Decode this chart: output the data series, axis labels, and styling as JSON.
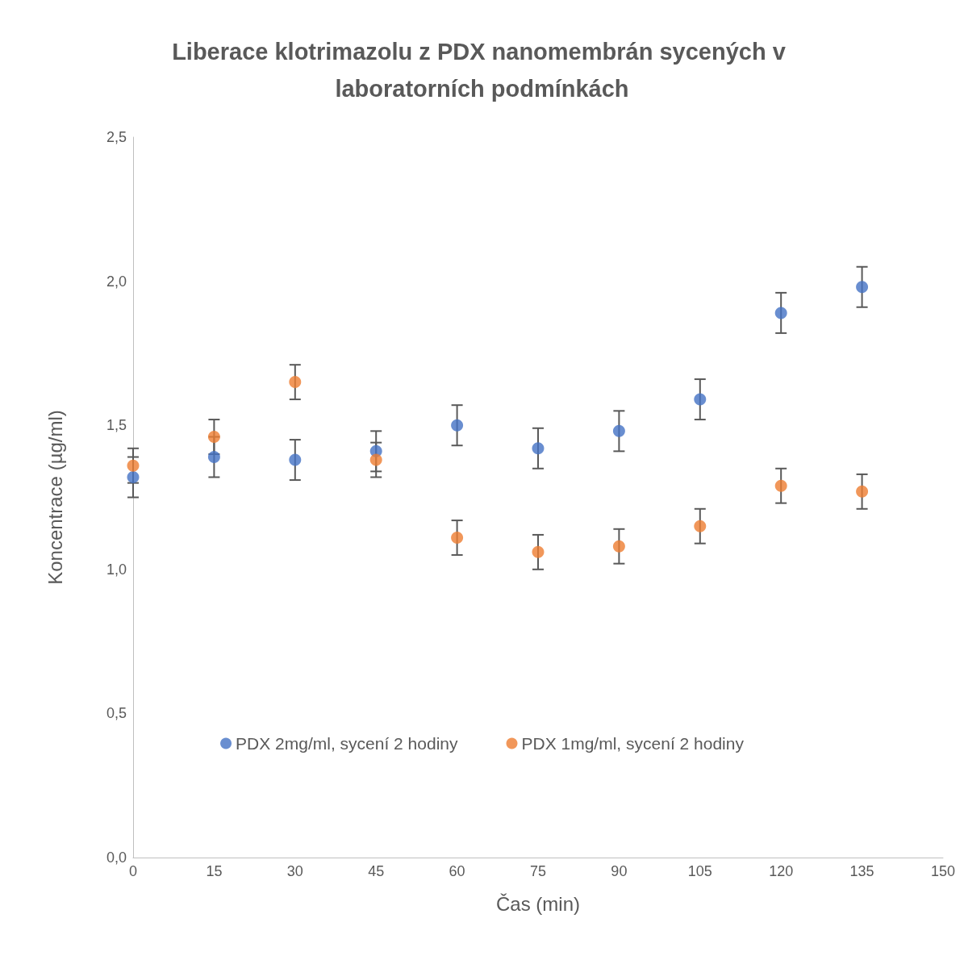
{
  "chart_data": {
    "type": "scatter",
    "title": "Liberace klotrimazolu z PDX nanomembrán sycených v laboratorních podmínkách",
    "xlabel": "Čas (min)",
    "ylabel": "Koncentrace (µg/ml)",
    "x": [
      0,
      15,
      30,
      45,
      60,
      75,
      90,
      105,
      120,
      135
    ],
    "series": [
      {
        "name": "PDX 2mg/ml, sycení 2 hodiny",
        "color": "#4472c4",
        "values": [
          1.32,
          1.39,
          1.38,
          1.41,
          1.5,
          1.42,
          1.48,
          1.59,
          1.89,
          1.98
        ],
        "errors": [
          0.07,
          0.07,
          0.07,
          0.07,
          0.07,
          0.07,
          0.07,
          0.07,
          0.07,
          0.07
        ]
      },
      {
        "name": "PDX 1mg/ml, sycení 2 hodiny",
        "color": "#ed7d31",
        "values": [
          1.36,
          1.46,
          1.65,
          1.38,
          1.11,
          1.06,
          1.08,
          1.15,
          1.29,
          1.27
        ],
        "errors": [
          0.06,
          0.06,
          0.06,
          0.06,
          0.06,
          0.06,
          0.06,
          0.06,
          0.06,
          0.06
        ]
      }
    ],
    "xlim": [
      0,
      150
    ],
    "xticks": [
      0,
      15,
      30,
      45,
      60,
      75,
      90,
      105,
      120,
      135,
      150
    ],
    "ylim": [
      0,
      2.5
    ],
    "yticks": [
      {
        "value": 0,
        "label": "0,0"
      },
      {
        "value": 0.5,
        "label": "0,5"
      },
      {
        "value": 1,
        "label": "1,0"
      },
      {
        "value": 1.5,
        "label": "1,5"
      },
      {
        "value": 2,
        "label": "2,0"
      },
      {
        "value": 2.5,
        "label": "2,5"
      }
    ],
    "grid": false,
    "legend": "bottom",
    "marker": "circle"
  }
}
